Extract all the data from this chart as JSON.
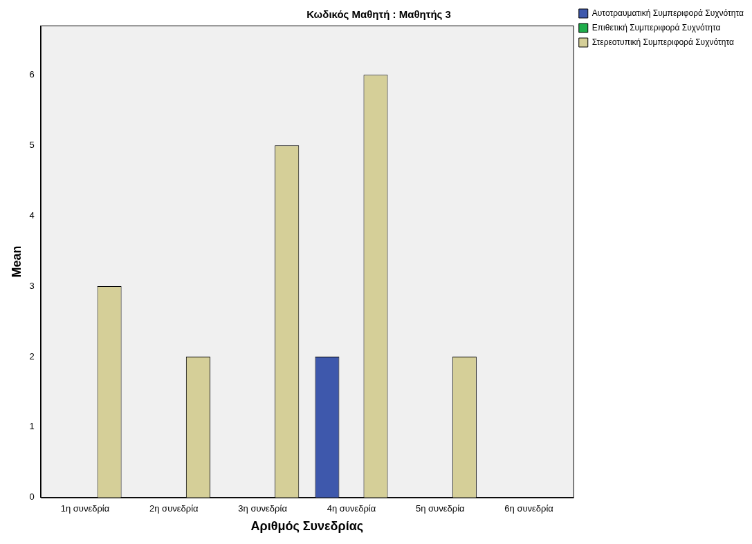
{
  "chart_data": {
    "type": "bar",
    "title": "Κωδικός Μαθητή : Μαθητής 3",
    "xlabel": "Αριθμός Συνεδρίας",
    "ylabel": "Mean",
    "categories": [
      "1η συνεδρία",
      "2η συνεδρία",
      "3η συνεδρία",
      "4η συνεδρία",
      "5η συνεδρία",
      "6η συνεδρία"
    ],
    "series": [
      {
        "name": "Αυτοτραυματική Συμπεριφορά Συχνότητα",
        "color": "#3e58ac",
        "values": [
          null,
          null,
          null,
          2,
          null,
          null
        ]
      },
      {
        "name": "Επιθετική Συμπεριφορά Συχνότητα",
        "color": "#1fad4b",
        "values": [
          null,
          null,
          null,
          null,
          null,
          null
        ]
      },
      {
        "name": "Στερεοτυπική Συμπεριφορά Συχνότητα",
        "color": "#d5cf98",
        "values": [
          3,
          2,
          5,
          6,
          2,
          null
        ]
      }
    ],
    "ylim": [
      0,
      6.7
    ],
    "yticks": [
      0,
      1,
      2,
      3,
      4,
      5,
      6
    ],
    "grid": false,
    "legend": "top right"
  }
}
